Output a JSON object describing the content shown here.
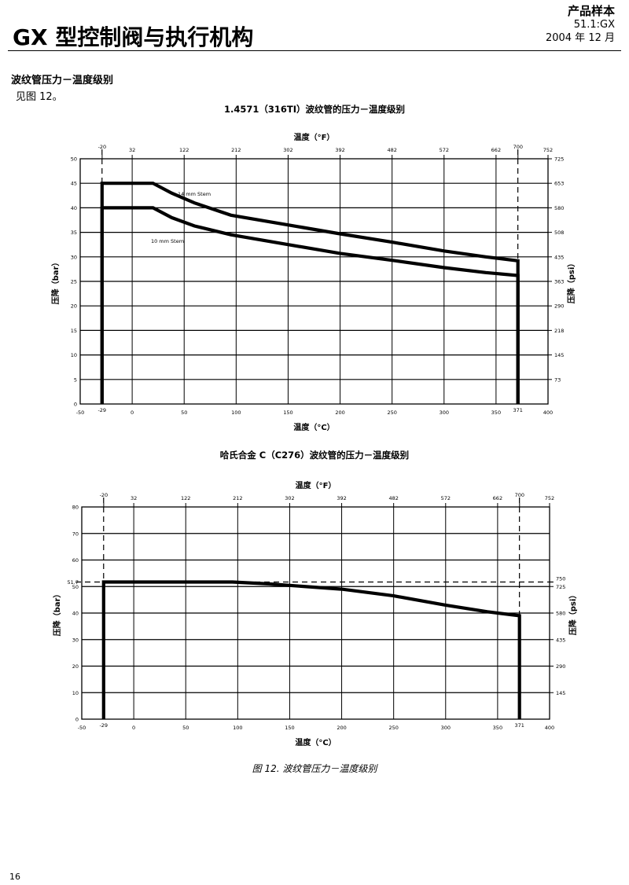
{
  "header": {
    "doc_title": "GX 型控制阀与执行机构",
    "catalog_label": "产品样本",
    "catalog_code": "51.1:GX",
    "date": "2004 年 12 月"
  },
  "section": {
    "title": "波纹管压力－温度级别",
    "body": "见图 12。"
  },
  "caption": "图 12. 波纹管压力－温度级别",
  "page_number": "16",
  "chart_data": [
    {
      "type": "line",
      "title": "1.4571（316TI）波纹管的压力－温度级别",
      "xlabel": "温度（°C）",
      "x2label": "温度（°F）",
      "ylabel": "压降（bar）",
      "y2label": "压降（psi）",
      "xlim": [
        -50,
        400
      ],
      "ylim": [
        0,
        50
      ],
      "x_ticks": [
        -50,
        0,
        50,
        100,
        150,
        200,
        250,
        300,
        350,
        400
      ],
      "x_ticks_special": [
        {
          "value": -29,
          "label": "-29"
        },
        {
          "value": 371,
          "label": "371"
        }
      ],
      "y_ticks": [
        0,
        5,
        10,
        15,
        20,
        25,
        30,
        35,
        40,
        45,
        50
      ],
      "top_ticks": [
        {
          "c": -28.9,
          "label": "-20"
        },
        {
          "c": 0,
          "label": "32"
        },
        {
          "c": 50,
          "label": "122"
        },
        {
          "c": 100,
          "label": "212"
        },
        {
          "c": 150,
          "label": "302"
        },
        {
          "c": 200,
          "label": "392"
        },
        {
          "c": 250,
          "label": "482"
        },
        {
          "c": 300,
          "label": "572"
        },
        {
          "c": 350,
          "label": "662"
        },
        {
          "c": 371.1,
          "label": "700"
        },
        {
          "c": 400,
          "label": "752"
        }
      ],
      "right_ticks": [
        {
          "bar": 5,
          "label": "73"
        },
        {
          "bar": 10,
          "label": "145"
        },
        {
          "bar": 15,
          "label": "218"
        },
        {
          "bar": 20,
          "label": "290"
        },
        {
          "bar": 25,
          "label": "363"
        },
        {
          "bar": 30,
          "label": "435"
        },
        {
          "bar": 35,
          "label": "508"
        },
        {
          "bar": 40,
          "label": "580"
        },
        {
          "bar": 45,
          "label": "653"
        },
        {
          "bar": 50,
          "label": "725"
        }
      ],
      "dashed_x": [
        -29,
        371
      ],
      "grid": true,
      "series": [
        {
          "name": "14 mm Stem",
          "x": [
            -29,
            -29,
            20,
            38,
            60,
            95,
            150,
            200,
            250,
            300,
            340,
            371,
            371
          ],
          "y": [
            0,
            45,
            45,
            43,
            41,
            38.5,
            36.5,
            34.7,
            33,
            31.2,
            30,
            29.2,
            0
          ]
        },
        {
          "name": "10 mm Stem",
          "x": [
            -29,
            -29,
            20,
            38,
            60,
            95,
            150,
            200,
            250,
            300,
            340,
            371,
            371
          ],
          "y": [
            0,
            40,
            40,
            38,
            36.3,
            34.5,
            32.5,
            30.7,
            29.3,
            27.8,
            26.8,
            26.2,
            0
          ]
        }
      ]
    },
    {
      "type": "line",
      "title": "哈氏合金 C（C276）波纹管的压力－温度级别",
      "xlabel": "温度（°C）",
      "x2label": "温度（°F）",
      "ylabel": "压降（bar）",
      "y2label": "压降（psi）",
      "xlim": [
        -50,
        400
      ],
      "ylim": [
        0,
        80
      ],
      "x_ticks": [
        -50,
        0,
        50,
        100,
        150,
        200,
        250,
        300,
        350,
        400
      ],
      "x_ticks_special": [
        {
          "value": -29,
          "label": "-29"
        },
        {
          "value": 371,
          "label": "371"
        }
      ],
      "y_ticks": [
        0,
        10,
        20,
        30,
        40,
        50,
        60,
        70,
        80
      ],
      "y_ticks_special": [
        {
          "value": 51.7,
          "label": "51.7"
        }
      ],
      "top_ticks": [
        {
          "c": -28.9,
          "label": "-20"
        },
        {
          "c": 0,
          "label": "32"
        },
        {
          "c": 50,
          "label": "122"
        },
        {
          "c": 100,
          "label": "212"
        },
        {
          "c": 150,
          "label": "302"
        },
        {
          "c": 200,
          "label": "392"
        },
        {
          "c": 250,
          "label": "482"
        },
        {
          "c": 300,
          "label": "572"
        },
        {
          "c": 350,
          "label": "662"
        },
        {
          "c": 371.1,
          "label": "700"
        },
        {
          "c": 400,
          "label": "752"
        }
      ],
      "right_ticks": [
        {
          "bar": 10,
          "label": "145"
        },
        {
          "bar": 20,
          "label": "290"
        },
        {
          "bar": 30,
          "label": "435"
        },
        {
          "bar": 40,
          "label": "580"
        },
        {
          "bar": 50,
          "label": "725"
        },
        {
          "bar": 51.7,
          "label": "750"
        }
      ],
      "dashed_x": [
        -29,
        371
      ],
      "dashed_y": [
        51.7
      ],
      "grid": true,
      "series": [
        {
          "name": "",
          "x": [
            -29,
            -29,
            95,
            130,
            200,
            250,
            300,
            340,
            371,
            371
          ],
          "y": [
            0,
            51.7,
            51.7,
            51,
            49,
            46.5,
            43,
            40.5,
            39,
            0
          ]
        }
      ]
    }
  ]
}
